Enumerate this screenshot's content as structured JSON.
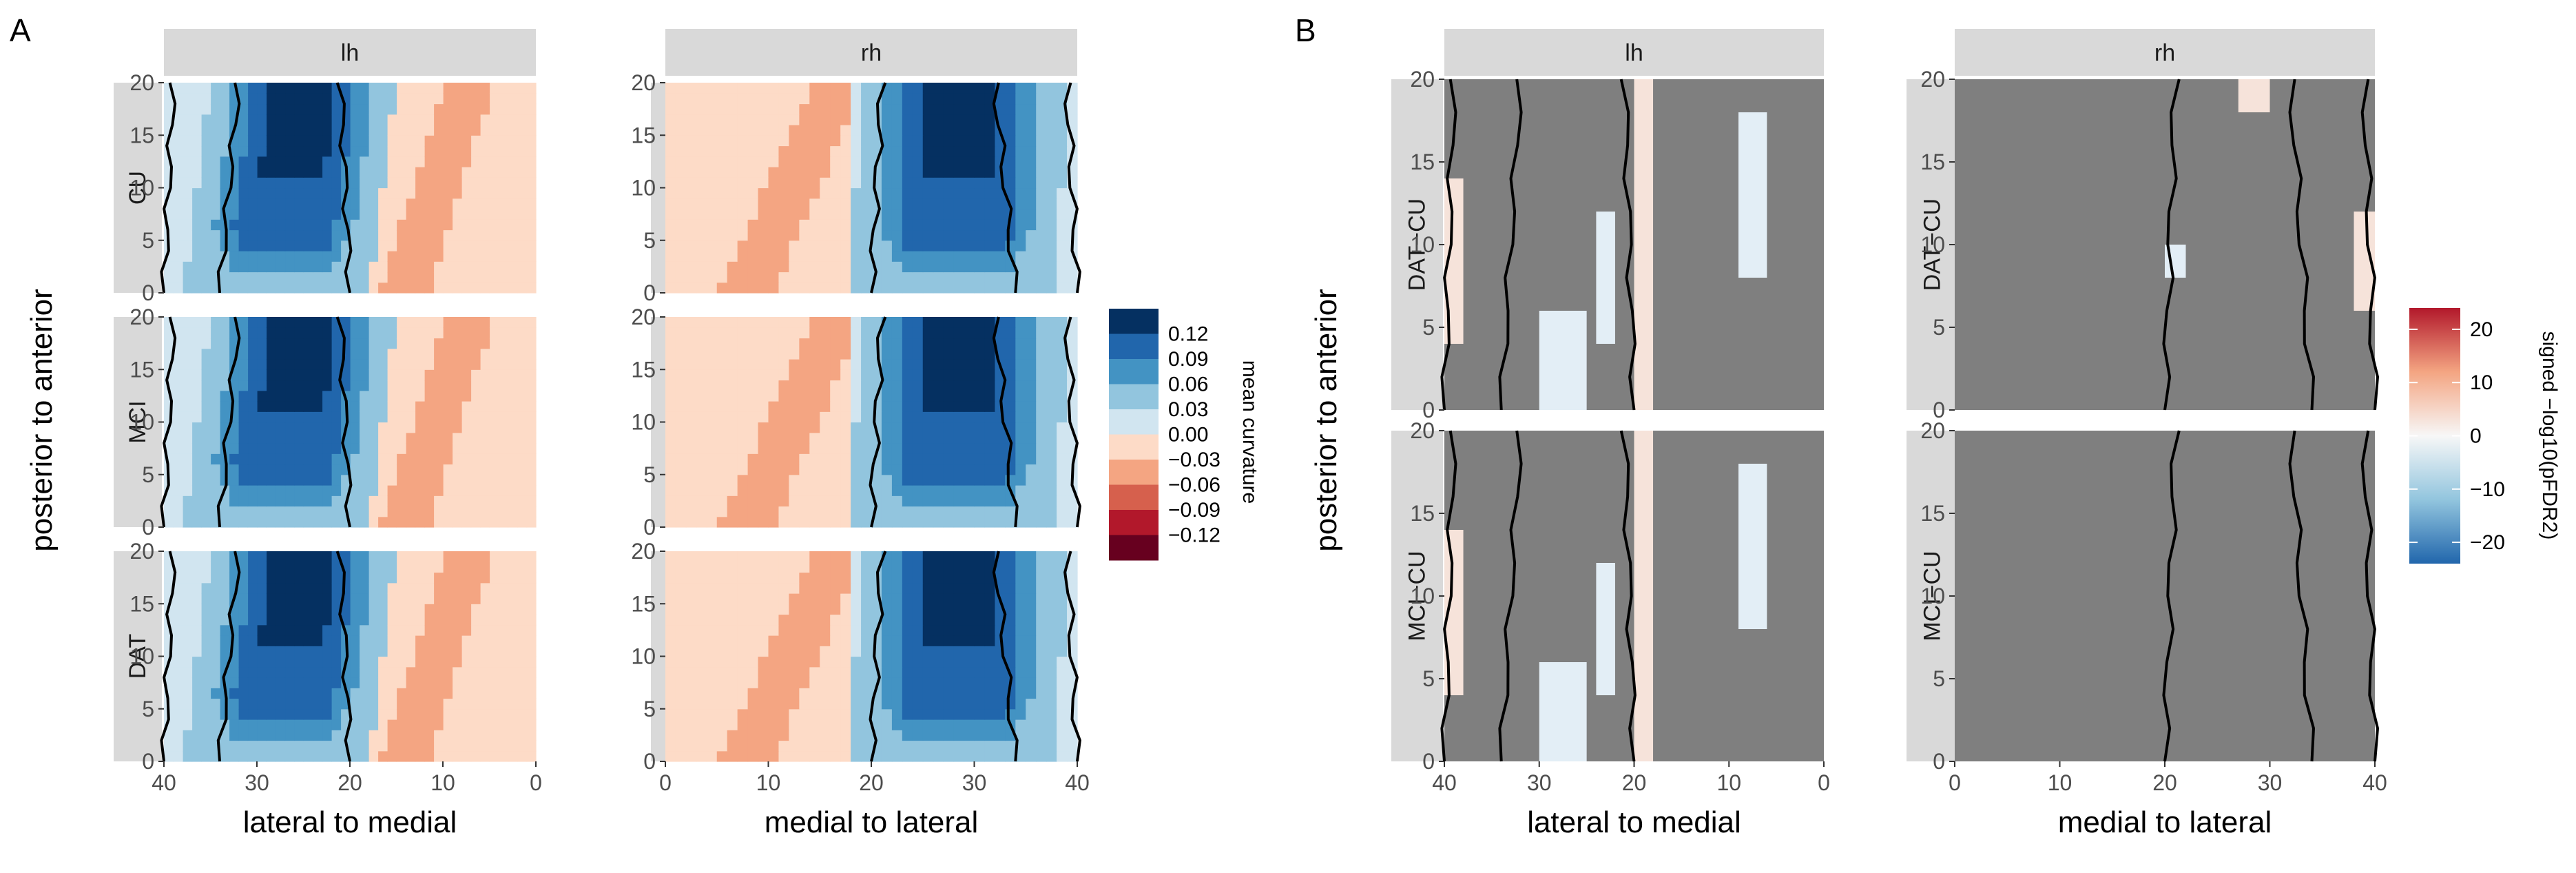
{
  "chart_data": [
    {
      "panel_tag": "A",
      "type": "heatmap",
      "x_range": [
        0,
        40
      ],
      "y_range": [
        0,
        20
      ],
      "x_ticks": [
        "40",
        "30",
        "20",
        "10",
        "0",
        "0",
        "10",
        "20",
        "30",
        "40"
      ],
      "y_ticks": [
        "0",
        "5",
        "10",
        "15",
        "20"
      ],
      "columns": [
        {
          "label": "lh",
          "xlabel": "lateral to medial",
          "x_reversed": true
        },
        {
          "label": "rh",
          "xlabel": "medial to lateral",
          "x_reversed": false
        }
      ],
      "rows": [
        "CU",
        "MCI",
        "DAT"
      ],
      "ylabel": "posterior to anterior",
      "legend": {
        "title": "mean curvature",
        "entries": [
          "0.12",
          "0.09",
          "0.06",
          "0.03",
          "0.00",
          "−0.03",
          "−0.06",
          "−0.09",
          "−0.12"
        ],
        "colors": [
          "#053061",
          "#2166ac",
          "#4393c3",
          "#92c5de",
          "#d1e5f0",
          "#fddbc7",
          "#f4a582",
          "#d6604d",
          "#b2182b",
          "#67001f"
        ]
      },
      "fill_colors": {
        "outside": "#d9d9d9",
        "zero": "#d1e5f0",
        "neg_small": "#fddbc7",
        "neg_band": "#f4a582",
        "pos_low": "#92c5de",
        "pos_mid": "#4393c3",
        "pos_high": "#2166ac",
        "pos_max": "#053061"
      },
      "boundary_color": "#000000"
    },
    {
      "panel_tag": "B",
      "type": "heatmap",
      "x_range": [
        0,
        40
      ],
      "y_range": [
        0,
        20
      ],
      "x_ticks": [
        "40",
        "30",
        "20",
        "10",
        "0",
        "0",
        "10",
        "20",
        "30",
        "40"
      ],
      "y_ticks": [
        "0",
        "5",
        "10",
        "15",
        "20"
      ],
      "columns": [
        {
          "label": "lh",
          "xlabel": "lateral to medial",
          "x_reversed": true
        },
        {
          "label": "rh",
          "xlabel": "medial to lateral",
          "x_reversed": false
        }
      ],
      "rows": [
        "DAT−CU",
        "MCI−CU"
      ],
      "ylabel": "posterior to anterior",
      "legend": {
        "title": "signed −log10(pFDR2)",
        "entries": [
          "20",
          "10",
          "0",
          "−10",
          "−20"
        ],
        "values": [
          20,
          10,
          0,
          -10,
          -20
        ],
        "range": [
          -24,
          24
        ],
        "colors": [
          "#2166ac",
          "#92c5de",
          "#f7f7f7",
          "#f4a582",
          "#b2182b"
        ]
      },
      "fill_colors": {
        "outside": "#d9d9d9",
        "nonsig": "#7f7f7f",
        "pos_light": "#f6e3da",
        "neg_light": "#e3eef6"
      },
      "boundary_color": "#000000"
    }
  ]
}
